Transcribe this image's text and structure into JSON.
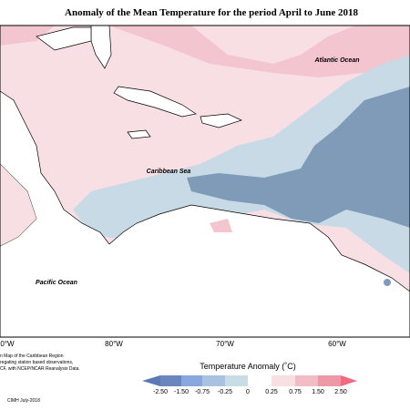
{
  "title": "Anomaly of the Mean Temperature for the period April to June 2018",
  "map": {
    "labels": [
      "Atlantic Ocean",
      "Caribbean Sea",
      "Pacific Ocean"
    ],
    "longitudes": [
      "0°W",
      "80°W",
      "70°W",
      "60°W"
    ]
  },
  "legend": {
    "title": "Temperature Anomaly (˚C)",
    "ticks": [
      "-2.50",
      "-1.50",
      "-0.75",
      "-0.25",
      "0",
      "0.25",
      "0.75",
      "1.50",
      "2.50"
    ]
  },
  "footnote": [
    "n Map of the Caribbean Region",
    "regating station based observations,",
    "CF, with NCEP/NCAR Reanalysis Data."
  ],
  "credit": "CIMH July-2018"
}
